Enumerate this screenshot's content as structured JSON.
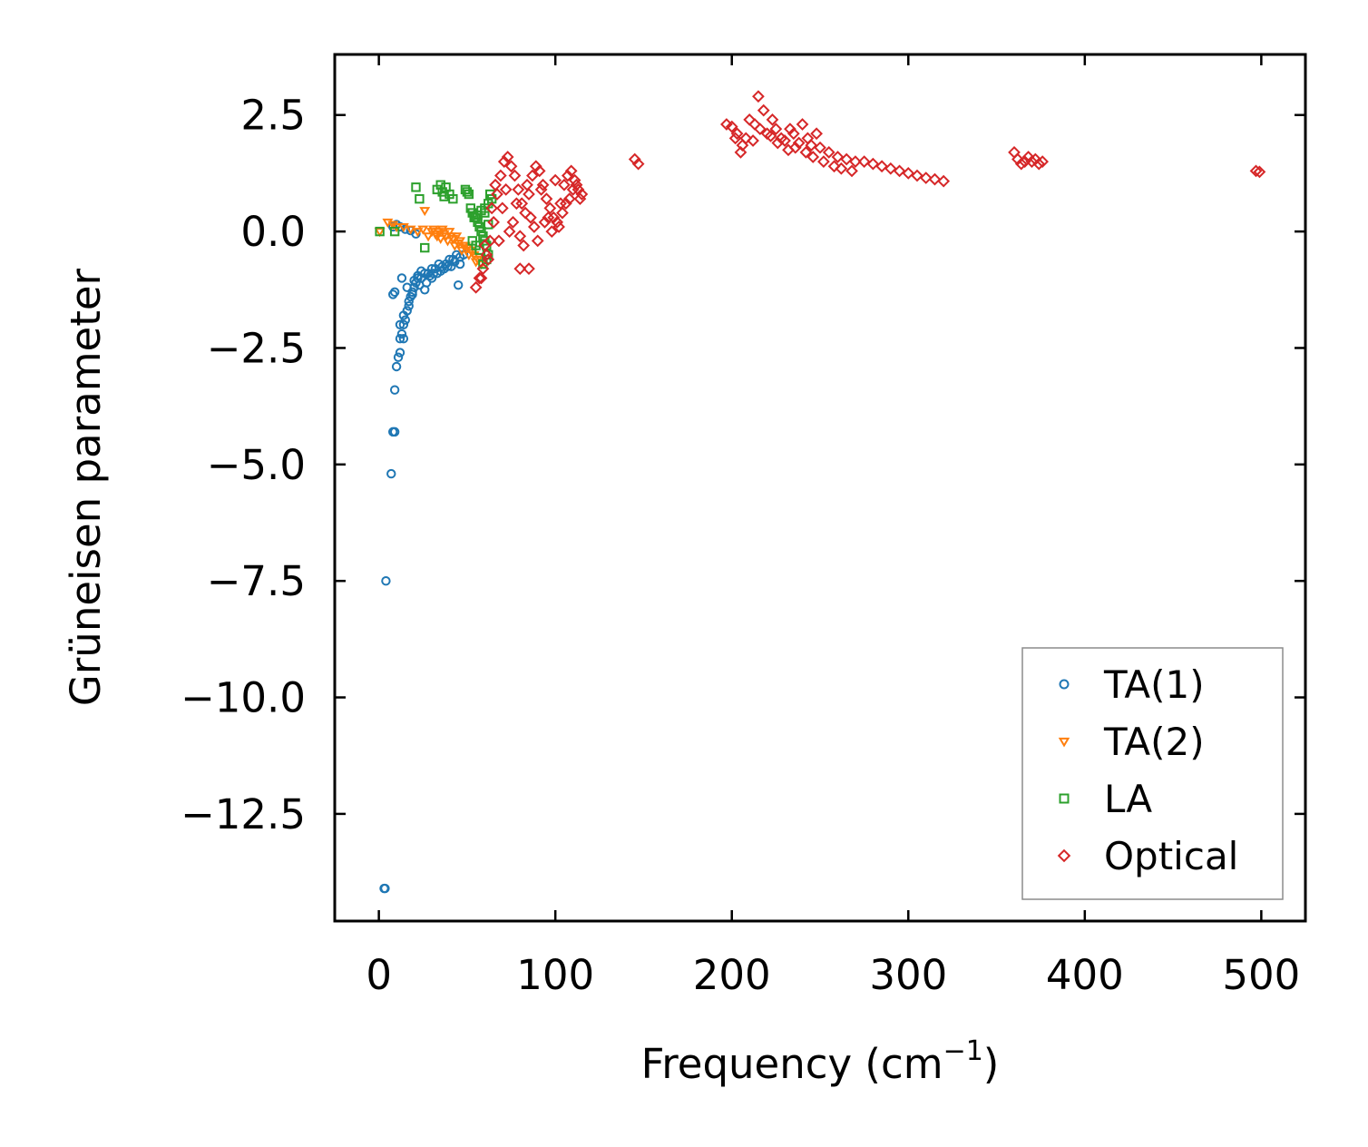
{
  "chart_data": {
    "type": "scatter",
    "title": "",
    "xlabel": "Frequency (cm",
    "xlabel_sup": "−1",
    "xlabel_close": ")",
    "ylabel": "Grüneisen parameter",
    "xlim": [
      -25,
      525
    ],
    "ylim": [
      -14.8,
      3.8
    ],
    "xticks": [
      0,
      100,
      200,
      300,
      400,
      500
    ],
    "xtick_labels": [
      "0",
      "100",
      "200",
      "300",
      "400",
      "500"
    ],
    "yticks": [
      2.5,
      0.0,
      -2.5,
      -5.0,
      -7.5,
      -10.0,
      -12.5
    ],
    "ytick_labels": [
      "2.5",
      "0.0",
      "−2.5",
      "−5.0",
      "−7.5",
      "−10.0",
      "−12.5"
    ],
    "grid": false,
    "legend": {
      "placement": "lower-right",
      "entries": [
        "TA(1)",
        "TA(2)",
        "LA",
        "Optical"
      ]
    },
    "series": [
      {
        "name": "TA(1)",
        "marker": "circle",
        "color": "#1f77b4",
        "x": [
          3,
          3.5,
          4,
          7,
          8,
          9,
          9,
          10,
          11,
          12,
          12,
          13,
          14,
          14,
          15,
          16,
          17,
          18,
          19,
          20,
          21,
          22,
          24,
          26,
          28,
          30,
          32,
          34,
          36,
          38,
          40,
          42,
          44,
          46,
          48,
          8,
          9,
          13,
          16,
          20,
          22,
          24,
          12,
          14,
          17,
          19,
          23,
          27,
          29,
          31,
          35,
          39,
          43,
          45,
          8,
          10,
          12,
          15,
          18,
          21,
          26,
          30,
          33,
          37,
          41,
          46
        ],
        "y": [
          -14.1,
          -14.1,
          -7.5,
          -5.2,
          -4.3,
          -4.3,
          -3.4,
          -2.9,
          -2.7,
          -2.6,
          -2.3,
          -2.2,
          -2.0,
          -2.3,
          -1.9,
          -1.7,
          -1.6,
          -1.4,
          -1.3,
          -1.2,
          -1.1,
          -1.0,
          -1.0,
          -0.9,
          -0.9,
          -0.8,
          -0.8,
          -0.7,
          -0.75,
          -0.7,
          -0.6,
          -0.6,
          -0.5,
          -0.55,
          -0.5,
          -1.35,
          -1.3,
          -1.0,
          -1.2,
          -1.05,
          -0.95,
          -0.85,
          -2.0,
          -1.8,
          -1.5,
          -1.35,
          -1.15,
          -1.1,
          -0.95,
          -0.9,
          -0.85,
          -0.75,
          -0.65,
          -1.15,
          0.1,
          0.15,
          0.1,
          0.05,
          0.02,
          -0.05,
          -1.25,
          -1.0,
          -0.9,
          -0.8,
          -0.75,
          -0.7
        ]
      },
      {
        "name": "TA(2)",
        "marker": "triangle",
        "color": "#ff7f0e",
        "x": [
          0.5,
          5,
          8,
          10,
          14,
          18,
          22,
          25,
          26,
          28,
          30,
          32,
          34,
          36,
          38,
          40,
          42,
          44,
          46,
          48,
          50,
          52,
          54,
          56,
          58,
          31,
          33,
          37,
          41,
          45,
          49,
          53,
          57,
          35,
          39,
          43,
          47,
          51,
          55
        ],
        "y": [
          0.0,
          0.2,
          0.15,
          0.1,
          0.1,
          0.05,
          0.0,
          0.05,
          0.45,
          -0.1,
          0.0,
          -0.05,
          0.0,
          0.05,
          -0.1,
          0.0,
          -0.15,
          -0.1,
          -0.2,
          -0.3,
          -0.35,
          -0.4,
          -0.5,
          -0.6,
          -0.7,
          0.05,
          -0.1,
          -0.05,
          -0.1,
          -0.25,
          -0.3,
          -0.45,
          -0.55,
          -0.15,
          -0.2,
          -0.3,
          -0.4,
          -0.5,
          -0.65
        ]
      },
      {
        "name": "LA",
        "marker": "square",
        "color": "#2ca02c",
        "x": [
          0.5,
          9,
          21,
          23,
          26,
          33,
          35,
          36,
          37,
          38,
          40,
          42,
          49,
          50,
          51,
          52,
          53,
          54,
          55,
          56,
          57,
          58,
          59,
          60,
          61,
          62,
          60,
          58,
          56,
          62,
          61,
          59,
          57,
          55,
          53,
          63,
          64,
          62,
          60
        ],
        "y": [
          0.0,
          0.0,
          0.95,
          0.7,
          -0.35,
          0.9,
          1.0,
          0.85,
          0.75,
          0.95,
          0.8,
          0.7,
          0.9,
          0.85,
          0.8,
          0.5,
          0.4,
          0.3,
          0.3,
          0.2,
          0.1,
          0.0,
          -0.1,
          -0.2,
          -0.3,
          0.6,
          0.4,
          0.45,
          0.35,
          -0.5,
          -0.6,
          -0.7,
          -0.4,
          -0.3,
          -0.2,
          0.8,
          0.7,
          0.15,
          0.5
        ]
      },
      {
        "name": "Optical",
        "marker": "diamond",
        "color": "#d62728",
        "x": [
          55,
          57,
          59,
          61,
          63,
          65,
          67,
          69,
          71,
          73,
          75,
          77,
          79,
          81,
          83,
          85,
          87,
          89,
          91,
          93,
          95,
          97,
          99,
          101,
          103,
          105,
          107,
          109,
          111,
          113,
          115,
          60,
          64,
          68,
          72,
          76,
          80,
          84,
          88,
          92,
          96,
          100,
          104,
          108,
          112,
          66,
          70,
          74,
          78,
          82,
          86,
          90,
          94,
          98,
          102,
          106,
          110,
          114,
          80,
          85,
          58,
          62,
          145,
          147,
          197,
          200,
          203,
          205,
          208,
          210,
          213,
          215,
          218,
          220,
          223,
          225,
          228,
          230,
          233,
          235,
          238,
          240,
          243,
          245,
          248,
          250,
          255,
          260,
          265,
          270,
          275,
          280,
          285,
          290,
          295,
          300,
          305,
          310,
          315,
          320,
          202,
          206,
          212,
          216,
          222,
          226,
          232,
          236,
          242,
          246,
          252,
          258,
          262,
          268,
          360,
          362,
          364,
          366,
          368,
          370,
          372,
          374,
          376,
          497,
          499
        ],
        "y": [
          -1.2,
          -1.0,
          -0.8,
          -0.5,
          -0.2,
          0.2,
          0.8,
          1.2,
          1.5,
          1.6,
          1.4,
          1.2,
          0.9,
          0.6,
          0.4,
          0.8,
          1.2,
          1.4,
          1.3,
          1.0,
          0.7,
          0.5,
          0.3,
          0.2,
          0.6,
          1.0,
          1.2,
          1.3,
          1.1,
          0.9,
          0.8,
          -0.3,
          0.5,
          -0.2,
          0.9,
          0.2,
          -0.1,
          1.0,
          0.1,
          0.9,
          0.3,
          1.1,
          0.4,
          0.7,
          1.0,
          1.0,
          0.5,
          0.0,
          0.6,
          -0.3,
          0.3,
          -0.2,
          0.2,
          0.0,
          0.1,
          0.6,
          0.9,
          0.7,
          -0.8,
          -0.8,
          -1.0,
          -0.6,
          1.55,
          1.45,
          2.3,
          2.25,
          2.1,
          1.7,
          2.0,
          2.4,
          2.3,
          2.9,
          2.6,
          2.1,
          2.4,
          2.2,
          2.0,
          1.95,
          2.2,
          2.1,
          1.9,
          2.3,
          2.0,
          1.85,
          2.1,
          1.8,
          1.7,
          1.6,
          1.55,
          1.5,
          1.5,
          1.45,
          1.4,
          1.35,
          1.3,
          1.25,
          1.2,
          1.15,
          1.12,
          1.08,
          2.0,
          1.85,
          1.95,
          2.2,
          2.05,
          1.9,
          1.75,
          1.8,
          1.7,
          1.6,
          1.5,
          1.4,
          1.35,
          1.3,
          1.7,
          1.55,
          1.45,
          1.5,
          1.6,
          1.5,
          1.55,
          1.45,
          1.5,
          1.3,
          1.28
        ]
      }
    ]
  }
}
